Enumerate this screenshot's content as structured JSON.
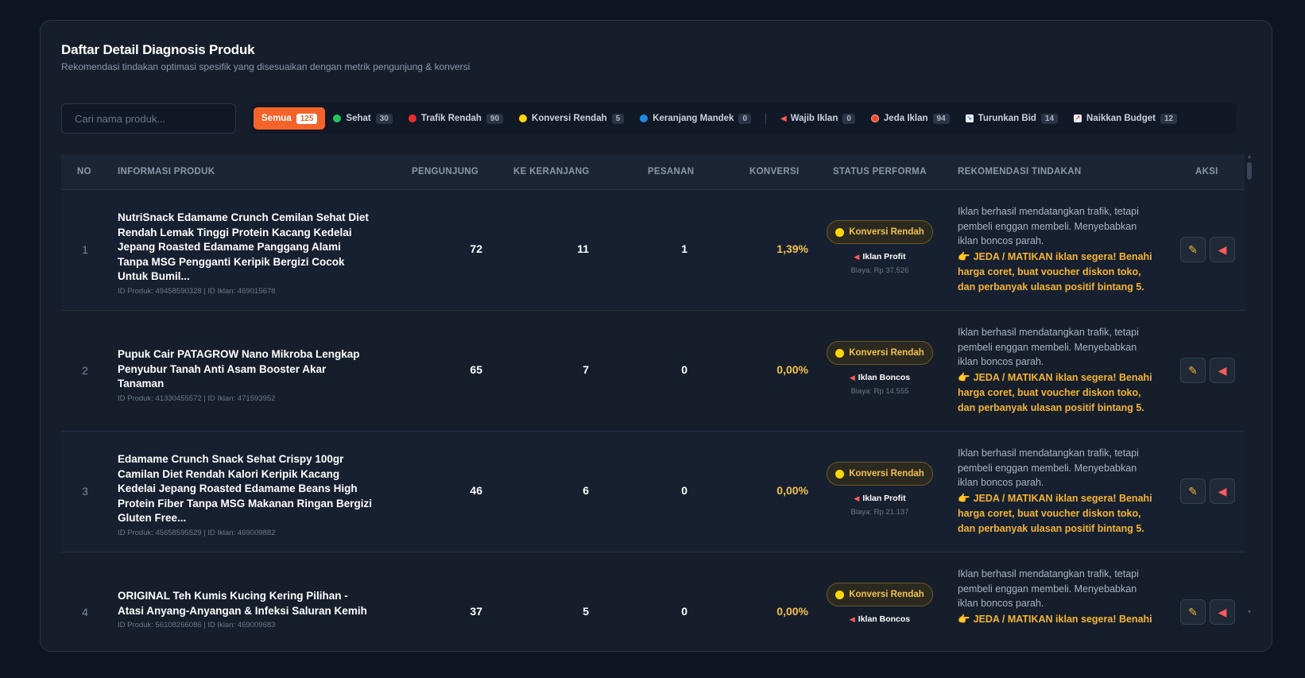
{
  "header": {
    "title": "Daftar Detail Diagnosis Produk",
    "subtitle": "Rekomendasi tindakan optimasi spesifik yang disesuaikan dengan metrik pengunjung & konversi"
  },
  "search": {
    "placeholder": "Cari nama produk...",
    "value": ""
  },
  "filters": [
    {
      "label": "Semua",
      "count": "125",
      "active": true
    },
    {
      "label": "Sehat",
      "count": "30",
      "color": "#22c55e"
    },
    {
      "label": "Trafik Rendah",
      "count": "90",
      "color": "#ef2b2b"
    },
    {
      "label": "Konversi Rendah",
      "count": "5",
      "color": "#ffd60a"
    },
    {
      "label": "Keranjang Mandek",
      "count": "0",
      "color": "#1e88e5"
    },
    {
      "label": "Wajib Iklan",
      "count": "0",
      "icon": "megaphone-icon"
    },
    {
      "label": "Jeda Iklan",
      "count": "94",
      "icon": "stop-icon"
    },
    {
      "label": "Turunkan Bid",
      "count": "14",
      "icon": "chart-down-icon"
    },
    {
      "label": "Naikkan Budget",
      "count": "12",
      "icon": "chart-up-icon"
    }
  ],
  "columns": {
    "no": "NO",
    "info": "INFORMASI PRODUK",
    "visitors": "PENGUNJUNG",
    "cart": "KE KERANJANG",
    "orders": "PESANAN",
    "conversion": "KONVERSI",
    "status": "STATUS PERFORMA",
    "recommendation": "REKOMENDASI TINDAKAN",
    "action": "AKSI"
  },
  "rows": [
    {
      "no": "1",
      "name": "NutriSnack Edamame Crunch Cemilan Sehat Diet Rendah Lemak Tinggi Protein Kacang Kedelai Jepang Roasted Edamame Panggang Alami Tanpa MSG Pengganti Keripik Bergizi Cocok Untuk Bumil...",
      "ids": "ID Produk: 49458590328 | ID Iklan: 469015678",
      "visitors": "72",
      "cart": "11",
      "orders": "1",
      "conversion": "1,39%",
      "status": "Konversi Rendah",
      "ad_type": "Iklan Profit",
      "cost": "Biaya: Rp 37.526",
      "rec_desc": "Iklan berhasil mendatangkan trafik, tetapi pembeli enggan membeli. Menyebabkan iklan boncos parah.",
      "rec_action": "JEDA / MATIKAN iklan segera! Benahi harga coret, buat voucher diskon toko, dan perbanyak ulasan positif bintang 5."
    },
    {
      "no": "2",
      "name": "Pupuk Cair PATAGROW Nano Mikroba Lengkap Penyubur Tanah Anti Asam Booster Akar Tanaman",
      "ids": "ID Produk: 41330455572 | ID Iklan: 471593952",
      "visitors": "65",
      "cart": "7",
      "orders": "0",
      "conversion": "0,00%",
      "status": "Konversi Rendah",
      "ad_type": "Iklan Boncos",
      "cost": "Biaya: Rp 14.555",
      "rec_desc": "Iklan berhasil mendatangkan trafik, tetapi pembeli enggan membeli. Menyebabkan iklan boncos parah.",
      "rec_action": "JEDA / MATIKAN iklan segera! Benahi harga coret, buat voucher diskon toko, dan perbanyak ulasan positif bintang 5."
    },
    {
      "no": "3",
      "name": "Edamame Crunch Snack Sehat Crispy 100gr Camilan Diet Rendah Kalori Keripik Kacang Kedelai Jepang Roasted Edamame Beans High Protein Fiber Tanpa MSG Makanan Ringan Bergizi Gluten Free...",
      "ids": "ID Produk: 45658595529 | ID Iklan: 469009882",
      "visitors": "46",
      "cart": "6",
      "orders": "0",
      "conversion": "0,00%",
      "status": "Konversi Rendah",
      "ad_type": "Iklan Profit",
      "cost": "Biaya: Rp 21.137",
      "rec_desc": "Iklan berhasil mendatangkan trafik, tetapi pembeli enggan membeli. Menyebabkan iklan boncos parah.",
      "rec_action": "JEDA / MATIKAN iklan segera! Benahi harga coret, buat voucher diskon toko, dan perbanyak ulasan positif bintang 5."
    },
    {
      "no": "4",
      "name": "ORIGINAL Teh Kumis Kucing Kering Pilihan - Atasi Anyang-Anyangan & Infeksi Saluran Kemih",
      "ids": "ID Produk: 56108266086 | ID Iklan: 469009683",
      "visitors": "37",
      "cart": "5",
      "orders": "0",
      "conversion": "0,00%",
      "status": "Konversi Rendah",
      "ad_type": "Iklan Boncos",
      "cost": "",
      "rec_desc": "Iklan berhasil mendatangkan trafik, tetapi pembeli enggan membeli. Menyebabkan iklan boncos parah.",
      "rec_action": "JEDA / MATIKAN iklan segera! Benahi"
    }
  ]
}
